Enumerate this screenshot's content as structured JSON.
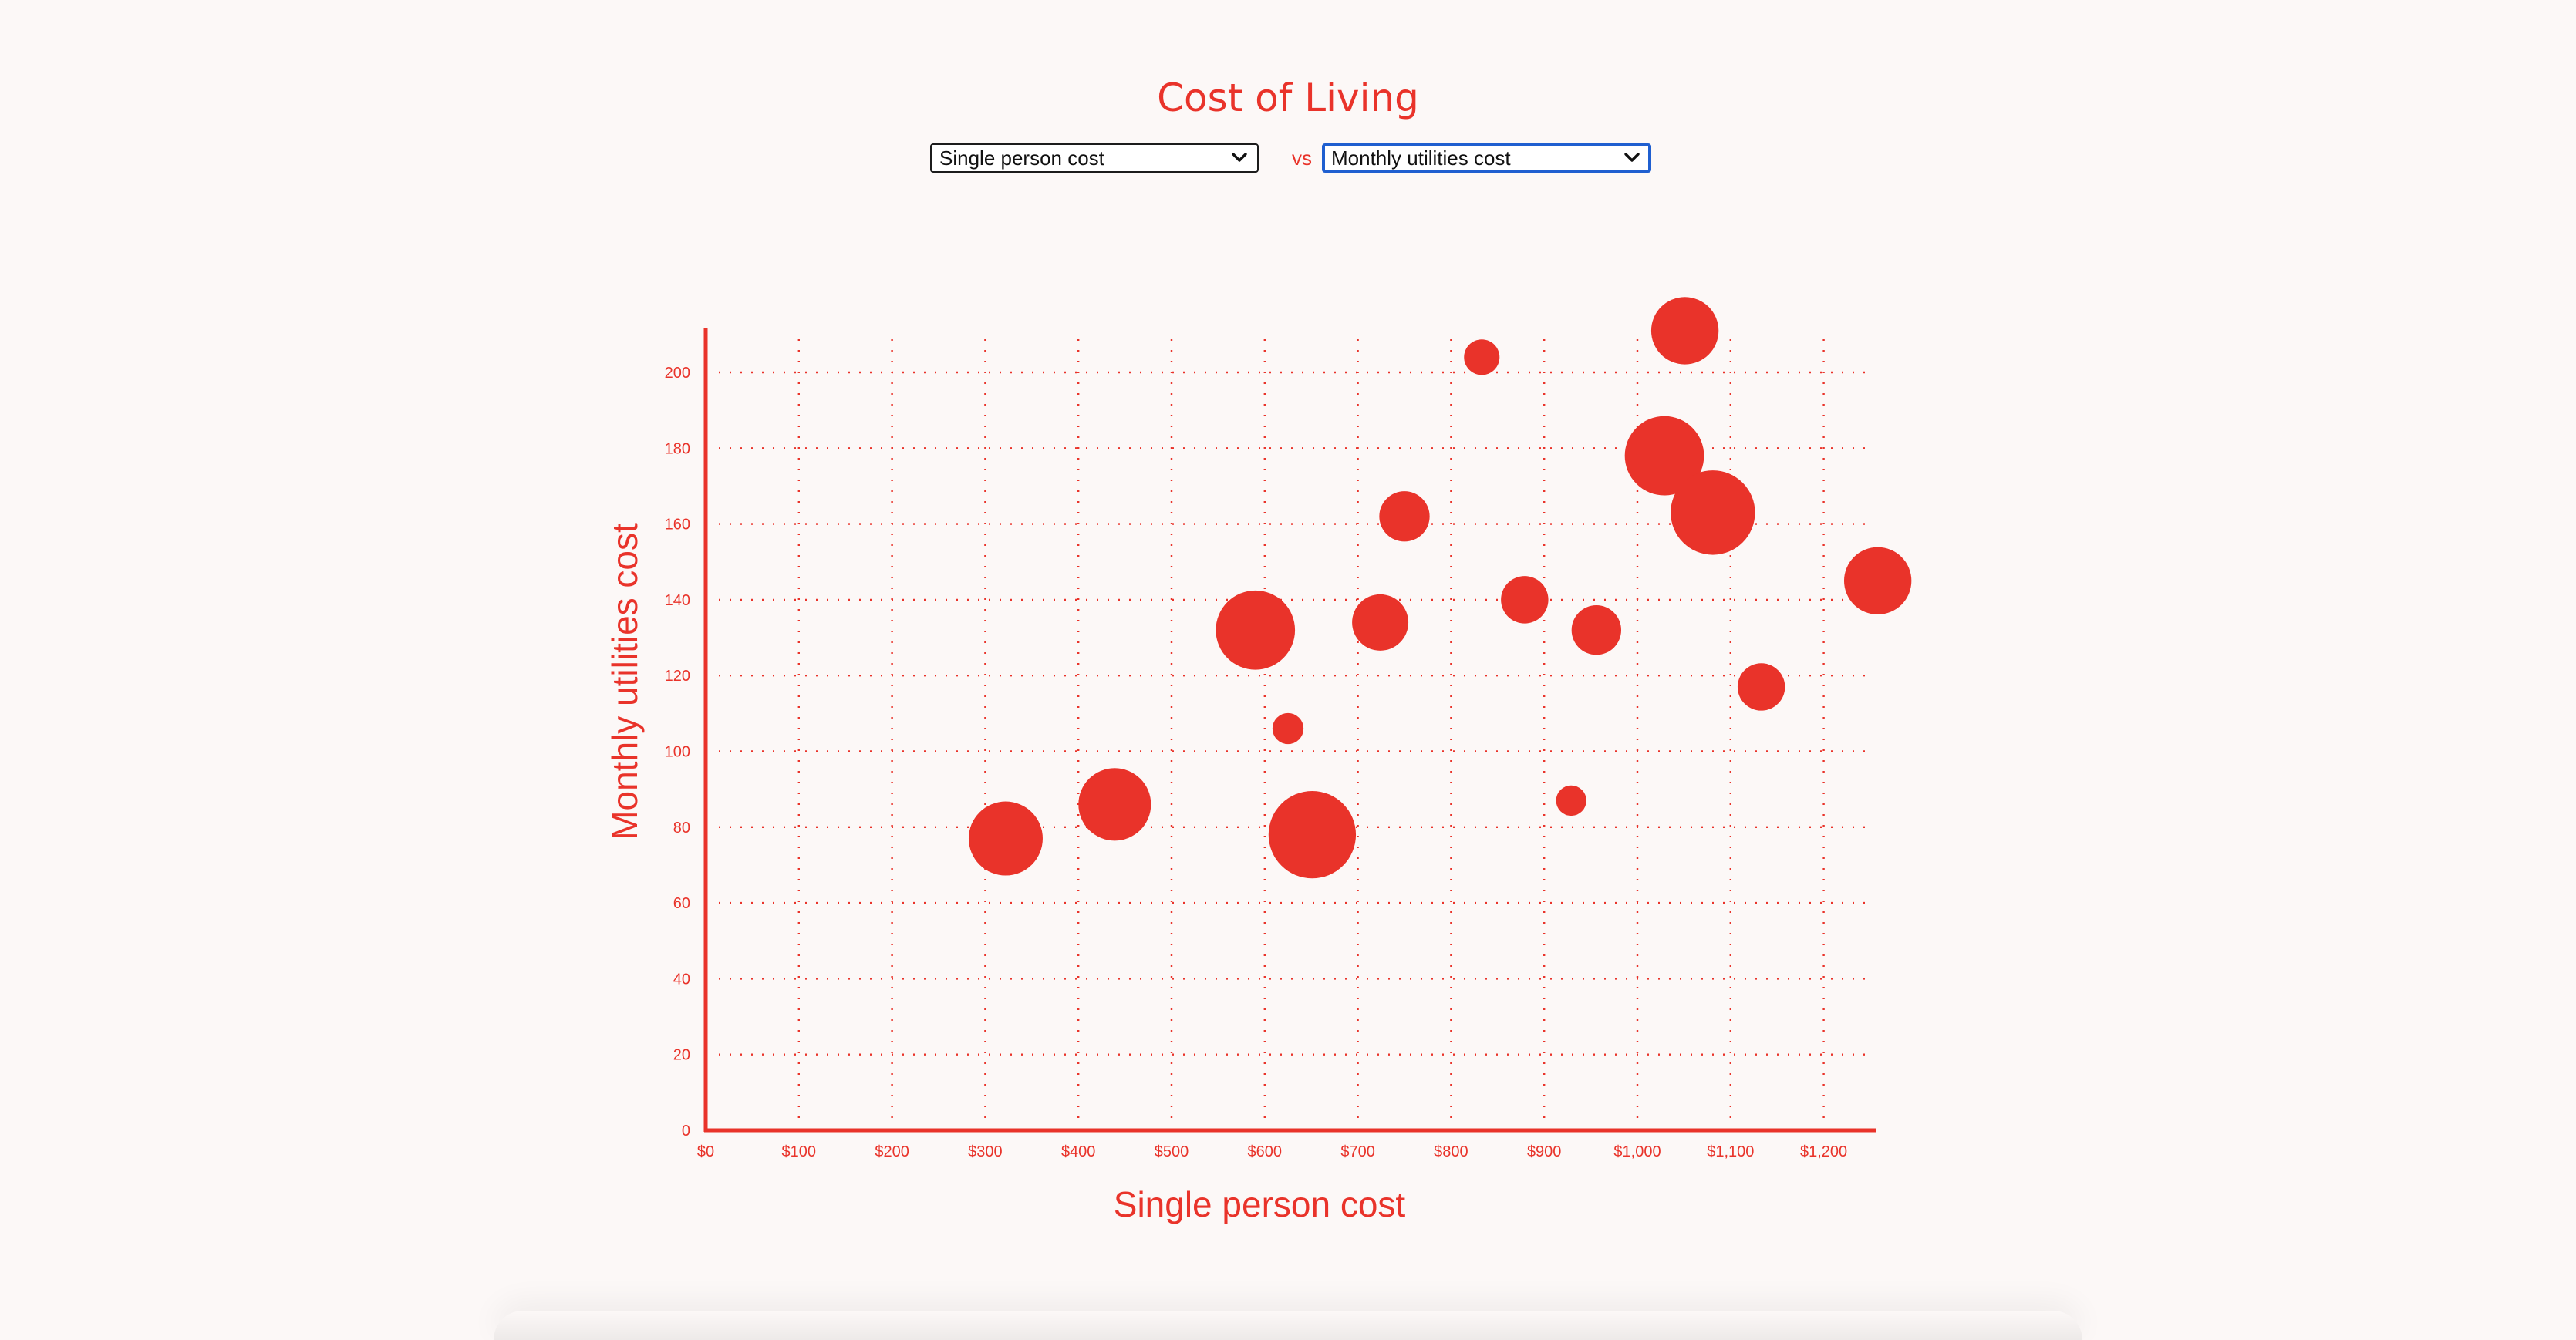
{
  "page": {
    "title": "Cost of Living",
    "vs_label": "vs",
    "x_select": {
      "selected": "Single person cost"
    },
    "y_select": {
      "selected": "Monthly utilities cost"
    }
  },
  "colors": {
    "accent": "#e9332a",
    "background": "#fcf8f7",
    "focus": "#1f5fd0"
  },
  "chart_data": {
    "type": "scatter",
    "title": "Cost of Living",
    "xlabel": "Single person cost",
    "ylabel": "Monthly utilities cost",
    "xlim": [
      0,
      1250
    ],
    "ylim": [
      0,
      210
    ],
    "grid": true,
    "x_ticks": [
      0,
      100,
      200,
      300,
      400,
      500,
      600,
      700,
      800,
      900,
      1000,
      1100,
      1200
    ],
    "x_tick_labels": [
      "$0",
      "$100",
      "$200",
      "$300",
      "$400",
      "$500",
      "$600",
      "$700",
      "$800",
      "$900",
      "$1,000",
      "$1,100",
      "$1,200"
    ],
    "y_ticks": [
      0,
      20,
      40,
      60,
      80,
      100,
      120,
      140,
      160,
      180,
      200
    ],
    "y_tick_labels": [
      "0",
      "20",
      "40",
      "60",
      "80",
      "100",
      "120",
      "140",
      "160",
      "180",
      "200"
    ],
    "points": [
      {
        "x": 322,
        "y": 77,
        "size": 1.0
      },
      {
        "x": 439,
        "y": 86,
        "size": 0.98
      },
      {
        "x": 590,
        "y": 132,
        "size": 1.07
      },
      {
        "x": 625,
        "y": 106,
        "size": 0.42
      },
      {
        "x": 651,
        "y": 78,
        "size": 1.18
      },
      {
        "x": 724,
        "y": 134,
        "size": 0.76
      },
      {
        "x": 750,
        "y": 162,
        "size": 0.68
      },
      {
        "x": 833,
        "y": 204,
        "size": 0.48
      },
      {
        "x": 879,
        "y": 140,
        "size": 0.64
      },
      {
        "x": 929,
        "y": 87,
        "size": 0.41
      },
      {
        "x": 956,
        "y": 132,
        "size": 0.67
      },
      {
        "x": 1029,
        "y": 178,
        "size": 1.07
      },
      {
        "x": 1051,
        "y": 211,
        "size": 0.91
      },
      {
        "x": 1081,
        "y": 163,
        "size": 1.14
      },
      {
        "x": 1133,
        "y": 117,
        "size": 0.64
      },
      {
        "x": 1258,
        "y": 145,
        "size": 0.91
      }
    ]
  }
}
